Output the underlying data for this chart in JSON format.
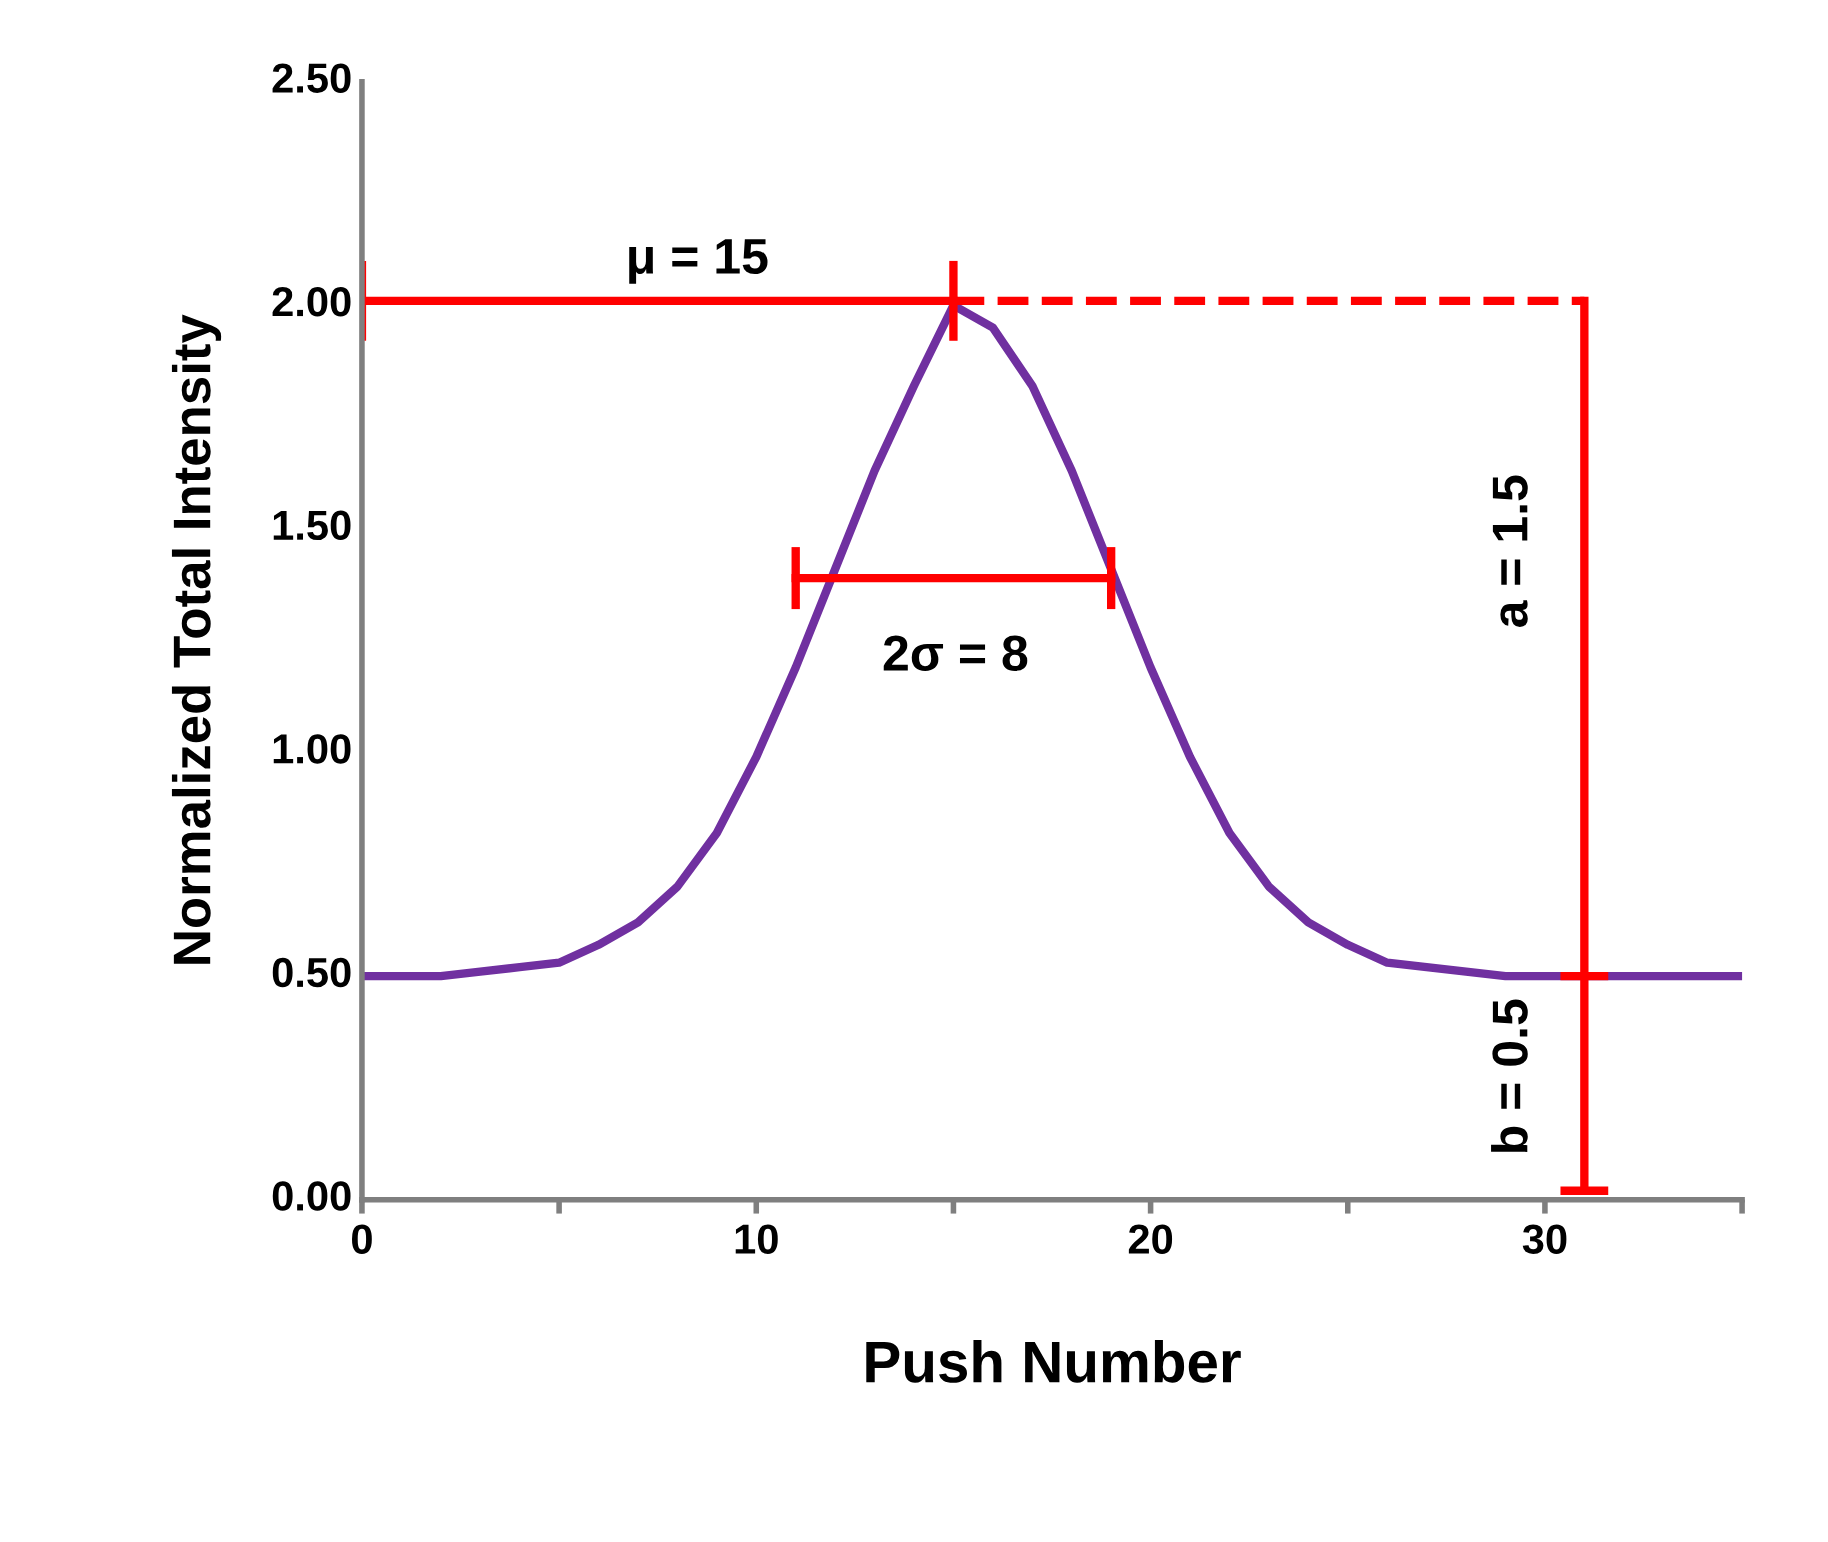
{
  "chart_data": {
    "type": "line",
    "xlabel": "Push Number",
    "ylabel": "Normalized Total Intensity",
    "xlim": [
      0,
      35
    ],
    "ylim": [
      0,
      2.5
    ],
    "xticks": [
      0,
      {
        "value": 5,
        "label": null
      },
      10,
      {
        "value": 15,
        "label": null
      },
      20,
      {
        "value": 25,
        "label": null
      },
      30,
      {
        "value": 35,
        "label": null
      }
    ],
    "yticks": [
      {
        "value": 0,
        "label": "0.00"
      },
      {
        "value": 0.5,
        "label": "0.50"
      },
      {
        "value": 1,
        "label": "1.00"
      },
      {
        "value": 1.5,
        "label": "1.50"
      },
      {
        "value": 2,
        "label": "2.00"
      },
      {
        "value": 2.5,
        "label": "2.50"
      }
    ],
    "grid": false,
    "legend": false,
    "series": [
      {
        "color": "#7030a0",
        "x": [
          0,
          1,
          2,
          3,
          4,
          5,
          6,
          7,
          8,
          9,
          10,
          11,
          12,
          13,
          14,
          15,
          16,
          17,
          18,
          19,
          20,
          21,
          22,
          23,
          24,
          25,
          26,
          27,
          28,
          29,
          30,
          31,
          32,
          33,
          34,
          35
        ],
        "values": [
          0.5,
          0.5,
          0.5,
          0.51,
          0.52,
          0.53,
          0.57,
          0.62,
          0.7,
          0.82,
          0.99,
          1.19,
          1.41,
          1.63,
          1.82,
          2.0,
          1.95,
          1.82,
          1.63,
          1.41,
          1.19,
          0.99,
          0.82,
          0.7,
          0.62,
          0.57,
          0.53,
          0.52,
          0.51,
          0.5,
          0.5,
          0.5,
          0.5,
          0.5,
          0.5,
          0.5
        ]
      },
      {
        "color": "#ff0000",
        "x": [
          0,
          15
        ],
        "values": [
          2.01,
          2.01
        ]
      },
      {
        "color": "#ff0000",
        "x": [
          0,
          0
        ],
        "values": [
          1.93,
          2.09
        ]
      },
      {
        "color": "#ff0000",
        "x": [
          15,
          15
        ],
        "values": [
          1.93,
          2.09
        ]
      },
      {
        "color": "#ff0000",
        "line_style": "dashed",
        "x": [
          15,
          31
        ],
        "values": [
          2.01,
          2.01
        ]
      },
      {
        "color": "#ff0000",
        "x": [
          11,
          19
        ],
        "values": [
          1.39,
          1.39
        ]
      },
      {
        "color": "#ff0000",
        "x": [
          11,
          11
        ],
        "values": [
          1.33,
          1.45
        ]
      },
      {
        "color": "#ff0000",
        "x": [
          19,
          19
        ],
        "values": [
          1.33,
          1.45
        ]
      },
      {
        "color": "#ff0000",
        "x": [
          31,
          31
        ],
        "values": [
          0.02,
          2.01
        ]
      },
      {
        "color": "#ff0000",
        "x": [
          30.5,
          31.5
        ],
        "values": [
          0.5,
          0.5
        ]
      },
      {
        "color": "#ff0000",
        "x": [
          30.5,
          31.5
        ],
        "values": [
          0.02,
          0.02
        ]
      }
    ],
    "annotations": [
      "μ = 15",
      "2σ = 8",
      "a = 1.5",
      "b = 0.5"
    ]
  }
}
